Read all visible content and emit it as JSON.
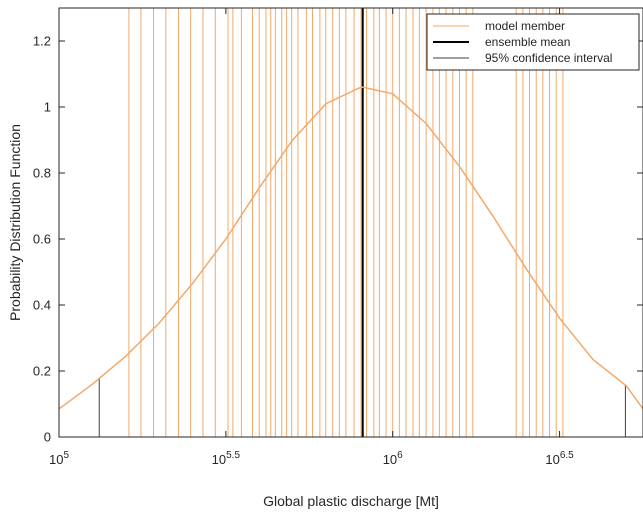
{
  "chart_data": {
    "type": "line",
    "title": "",
    "xlabel": "Global plastic discharge [Mt]",
    "ylabel": "Probability Distribution Function",
    "x_scale": "log",
    "xlim": [
      100000,
      5623413
    ],
    "ylim": [
      0,
      1.3
    ],
    "x_ticks": [
      {
        "value": 100000,
        "base": "10",
        "exp": "5"
      },
      {
        "value": 316228,
        "base": "10",
        "exp": "5.5"
      },
      {
        "value": 1000000,
        "base": "10",
        "exp": "6"
      },
      {
        "value": 3162278,
        "base": "10",
        "exp": "6.5"
      }
    ],
    "y_ticks": [
      "0",
      "0.2",
      "0.4",
      "0.6",
      "0.8",
      "1",
      "1.2"
    ],
    "grid": false,
    "legend_position": "top-right",
    "series": [
      {
        "name": "model member",
        "color": "#f2a96b",
        "kind": "vertical-lines",
        "x": [
          162000,
          176000,
          192000,
          209000,
          228000,
          248000,
          270000,
          294000,
          321000,
          332000,
          352000,
          380000,
          398000,
          417000,
          431000,
          445000,
          465000,
          481000,
          498000,
          520000,
          551000,
          575000,
          605000,
          630000,
          661000,
          692000,
          724000,
          766000,
          804000,
          835000,
          878000,
          912000,
          955000,
          1000000,
          1047000,
          1096000,
          1150000,
          1202000,
          1259000,
          1320000,
          1380000,
          1445000,
          1514000,
          1585000,
          1660000,
          1738000,
          2344000,
          2455000,
          2570000,
          2692000,
          2818000,
          2951000,
          3090000,
          3236000
        ]
      },
      {
        "name": "ensemble mean",
        "color": "#000000",
        "kind": "vertical-lines",
        "x": [
          813000
        ]
      },
      {
        "name": "95% confidence interval",
        "color": "#404040",
        "kind": "vertical-lines",
        "x": [
          132000,
          4980000
        ]
      },
      {
        "name": "",
        "color": "#f2a96b",
        "kind": "pdf-curve",
        "x": [
          100000,
          125893,
          158489,
          199526,
          251189,
          316228,
          398107,
          501187,
          630957,
          794328,
          812831,
          1000000,
          1258925,
          1584893,
          1995262,
          2511886,
          3162278,
          3981072,
          5011872,
          5623413
        ],
        "y": [
          0.085,
          0.16,
          0.245,
          0.345,
          0.465,
          0.6,
          0.755,
          0.9,
          1.01,
          1.058,
          1.06,
          1.04,
          0.95,
          0.82,
          0.67,
          0.51,
          0.36,
          0.235,
          0.155,
          0.085
        ]
      }
    ]
  }
}
